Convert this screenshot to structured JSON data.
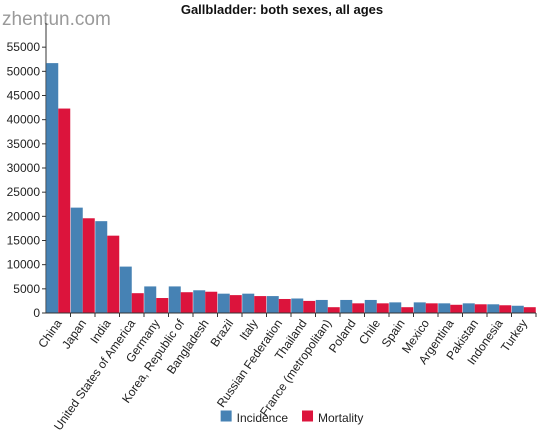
{
  "watermark": "zhentun.com",
  "chart_data": {
    "type": "bar",
    "title": "Gallbladder: both sexes, all ages",
    "xlabel": "",
    "ylabel": "",
    "ylim": [
      0,
      60000
    ],
    "yticks": [
      0,
      5000,
      10000,
      15000,
      20000,
      25000,
      30000,
      35000,
      40000,
      45000,
      50000,
      55000
    ],
    "grid": false,
    "legend_position": "bottom",
    "categories": [
      "China",
      "Japan",
      "India",
      "United States of America",
      "Germany",
      "Korea, Republic of",
      "Bangladesh",
      "Brazil",
      "Italy",
      "Russian Federation",
      "Thailand",
      "France (metropolitan)",
      "Poland",
      "Chile",
      "Spain",
      "Mexico",
      "Argentina",
      "Pakistan",
      "Indonesia",
      "Turkey"
    ],
    "series": [
      {
        "name": "Incidence",
        "color": "#4682b4",
        "values": [
          51700,
          21800,
          19000,
          9600,
          5500,
          5500,
          4700,
          4000,
          4000,
          3500,
          3000,
          2700,
          2700,
          2700,
          2200,
          2200,
          2000,
          2000,
          1800,
          1500
        ]
      },
      {
        "name": "Mortality",
        "color": "#dc143c",
        "values": [
          42300,
          19600,
          16000,
          4100,
          3100,
          4300,
          4400,
          3700,
          3500,
          2900,
          2500,
          1200,
          2000,
          2000,
          1200,
          2000,
          1700,
          1800,
          1600,
          1200
        ]
      }
    ]
  }
}
